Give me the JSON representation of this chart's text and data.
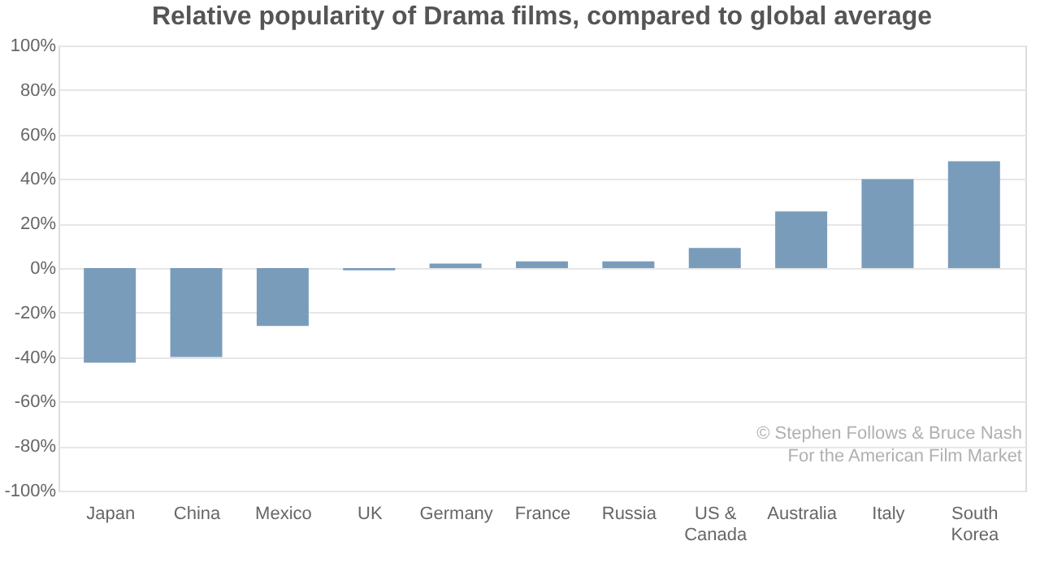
{
  "chart_data": {
    "type": "bar",
    "title": "Relative popularity of Drama films, compared to global average",
    "categories": [
      "Japan",
      "China",
      "Mexico",
      "UK",
      "Germany",
      "France",
      "Russia",
      "US &\nCanada",
      "Australia",
      "Italy",
      "South\nKorea"
    ],
    "values": [
      -42.5,
      -40,
      -26,
      -1,
      2,
      3,
      3,
      9,
      25.5,
      40,
      48
    ],
    "color": "#7a9cbb",
    "ylim": [
      -100,
      100
    ],
    "yticks": [
      {
        "value": -100,
        "label": "-100%"
      },
      {
        "value": -80,
        "label": "-80%"
      },
      {
        "value": -60,
        "label": "-60%"
      },
      {
        "value": -40,
        "label": "-40%"
      },
      {
        "value": -20,
        "label": "-20%"
      },
      {
        "value": 0,
        "label": "0%"
      },
      {
        "value": 20,
        "label": "20%"
      },
      {
        "value": 40,
        "label": "40%"
      },
      {
        "value": 60,
        "label": "60%"
      },
      {
        "value": 80,
        "label": "80%"
      },
      {
        "value": 100,
        "label": "100%"
      }
    ],
    "grid": "y",
    "annotations": [
      "© Stephen Follows & Bruce Nash",
      "For the American Film Market"
    ]
  }
}
